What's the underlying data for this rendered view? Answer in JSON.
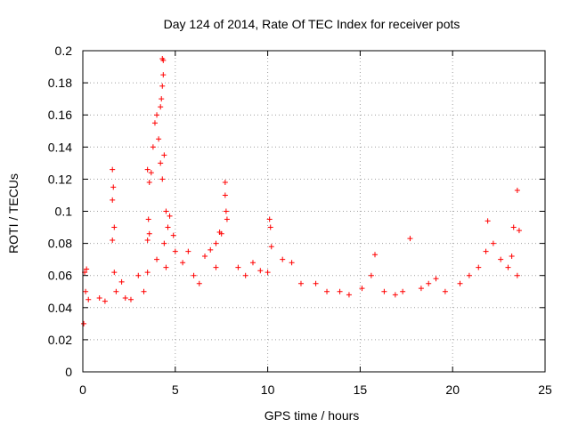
{
  "chart_data": {
    "type": "scatter",
    "title": "Day 124 of 2014, Rate Of TEC Index for receiver pots",
    "xlabel": "GPS time / hours",
    "ylabel": "ROTI / TECUs",
    "xlim": [
      0,
      25
    ],
    "ylim": [
      0,
      0.2
    ],
    "x_ticks": [
      "0",
      "5",
      "10",
      "15",
      "20",
      "25"
    ],
    "y_ticks": [
      "0",
      "0.02",
      "0.04",
      "0.06",
      "0.08",
      "0.1",
      "0.12",
      "0.14",
      "0.16",
      "0.18",
      "0.2"
    ],
    "x_tick_values": [
      0,
      5,
      10,
      15,
      20,
      25
    ],
    "y_tick_values": [
      0,
      0.02,
      0.04,
      0.06,
      0.08,
      0.1,
      0.12,
      0.14,
      0.16,
      0.18,
      0.2
    ],
    "grid": true,
    "marker": "+",
    "series_color": "#ff0000",
    "series": [
      {
        "name": "ROTI",
        "points": [
          [
            0.1,
            0.062
          ],
          [
            0.2,
            0.064
          ],
          [
            0.15,
            0.05
          ],
          [
            0.3,
            0.045
          ],
          [
            0.05,
            0.03
          ],
          [
            0.9,
            0.046
          ],
          [
            1.2,
            0.044
          ],
          [
            1.6,
            0.126
          ],
          [
            1.65,
            0.115
          ],
          [
            1.6,
            0.107
          ],
          [
            1.7,
            0.09
          ],
          [
            1.6,
            0.082
          ],
          [
            1.7,
            0.062
          ],
          [
            1.8,
            0.05
          ],
          [
            2.1,
            0.056
          ],
          [
            2.3,
            0.046
          ],
          [
            2.6,
            0.045
          ],
          [
            3.0,
            0.06
          ],
          [
            3.3,
            0.05
          ],
          [
            3.5,
            0.062
          ],
          [
            3.5,
            0.082
          ],
          [
            3.55,
            0.095
          ],
          [
            3.6,
            0.118
          ],
          [
            3.5,
            0.126
          ],
          [
            3.7,
            0.124
          ],
          [
            3.6,
            0.086
          ],
          [
            3.8,
            0.14
          ],
          [
            3.9,
            0.155
          ],
          [
            4.0,
            0.16
          ],
          [
            4.1,
            0.145
          ],
          [
            4.2,
            0.165
          ],
          [
            4.25,
            0.17
          ],
          [
            4.3,
            0.178
          ],
          [
            4.35,
            0.185
          ],
          [
            4.3,
            0.195
          ],
          [
            4.35,
            0.194
          ],
          [
            4.2,
            0.13
          ],
          [
            4.4,
            0.135
          ],
          [
            4.3,
            0.12
          ],
          [
            4.5,
            0.1
          ],
          [
            4.6,
            0.09
          ],
          [
            4.4,
            0.08
          ],
          [
            4.7,
            0.097
          ],
          [
            4.9,
            0.085
          ],
          [
            5.0,
            0.075
          ],
          [
            4.0,
            0.07
          ],
          [
            4.5,
            0.065
          ],
          [
            5.4,
            0.068
          ],
          [
            5.7,
            0.075
          ],
          [
            6.0,
            0.06
          ],
          [
            6.3,
            0.055
          ],
          [
            6.6,
            0.072
          ],
          [
            6.9,
            0.076
          ],
          [
            7.2,
            0.08
          ],
          [
            7.4,
            0.087
          ],
          [
            7.5,
            0.086
          ],
          [
            7.2,
            0.065
          ],
          [
            7.7,
            0.118
          ],
          [
            7.7,
            0.11
          ],
          [
            7.75,
            0.1
          ],
          [
            7.8,
            0.095
          ],
          [
            8.4,
            0.065
          ],
          [
            8.8,
            0.06
          ],
          [
            9.2,
            0.068
          ],
          [
            9.6,
            0.063
          ],
          [
            10.1,
            0.095
          ],
          [
            10.15,
            0.09
          ],
          [
            10.2,
            0.078
          ],
          [
            10.0,
            0.062
          ],
          [
            10.8,
            0.07
          ],
          [
            11.3,
            0.068
          ],
          [
            11.8,
            0.055
          ],
          [
            12.6,
            0.055
          ],
          [
            13.2,
            0.05
          ],
          [
            13.9,
            0.05
          ],
          [
            14.4,
            0.048
          ],
          [
            15.1,
            0.052
          ],
          [
            15.6,
            0.06
          ],
          [
            15.8,
            0.073
          ],
          [
            16.3,
            0.05
          ],
          [
            16.9,
            0.048
          ],
          [
            17.3,
            0.05
          ],
          [
            17.7,
            0.083
          ],
          [
            18.3,
            0.052
          ],
          [
            18.7,
            0.055
          ],
          [
            19.1,
            0.058
          ],
          [
            19.6,
            0.05
          ],
          [
            20.4,
            0.055
          ],
          [
            20.9,
            0.06
          ],
          [
            21.4,
            0.065
          ],
          [
            21.8,
            0.075
          ],
          [
            21.9,
            0.094
          ],
          [
            22.2,
            0.08
          ],
          [
            22.6,
            0.07
          ],
          [
            23.0,
            0.065
          ],
          [
            23.2,
            0.072
          ],
          [
            23.3,
            0.09
          ],
          [
            23.5,
            0.113
          ],
          [
            23.6,
            0.088
          ],
          [
            23.5,
            0.06
          ]
        ]
      }
    ]
  }
}
